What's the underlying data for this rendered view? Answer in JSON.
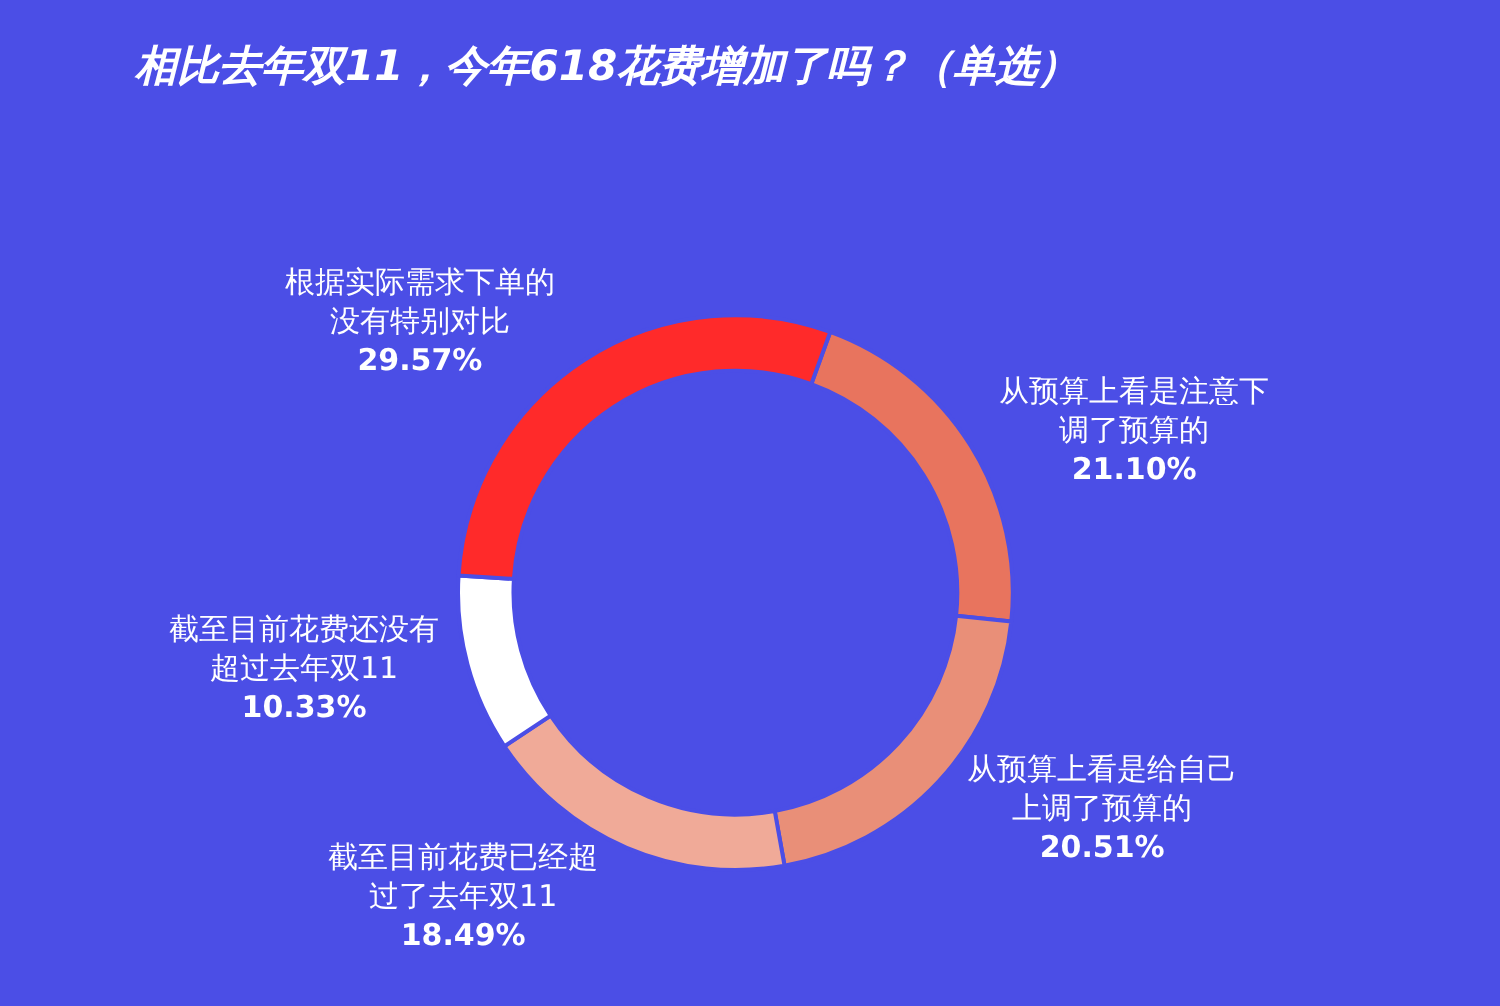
{
  "chart_data": {
    "type": "donut",
    "title": "相比去年双11，今年618花费增加了吗？（单选）",
    "categories": [
      "从预算上看是注意下调了预算的",
      "从预算上看是给自己上调了预算的",
      "截至目前花费已经超过了去年双11",
      "截至目前花费还没有超过去年双11",
      "根据实际需求下单的没有特别对比"
    ],
    "values": [
      21.1,
      20.51,
      18.49,
      10.33,
      29.57
    ],
    "value_labels": [
      "21.10%",
      "20.51%",
      "18.49%",
      "10.33%",
      "29.57%"
    ],
    "colors": [
      "#e8745e",
      "#e98f78",
      "#f0aa98",
      "#ffffff",
      "#ff2a2a"
    ],
    "legend": false
  }
}
